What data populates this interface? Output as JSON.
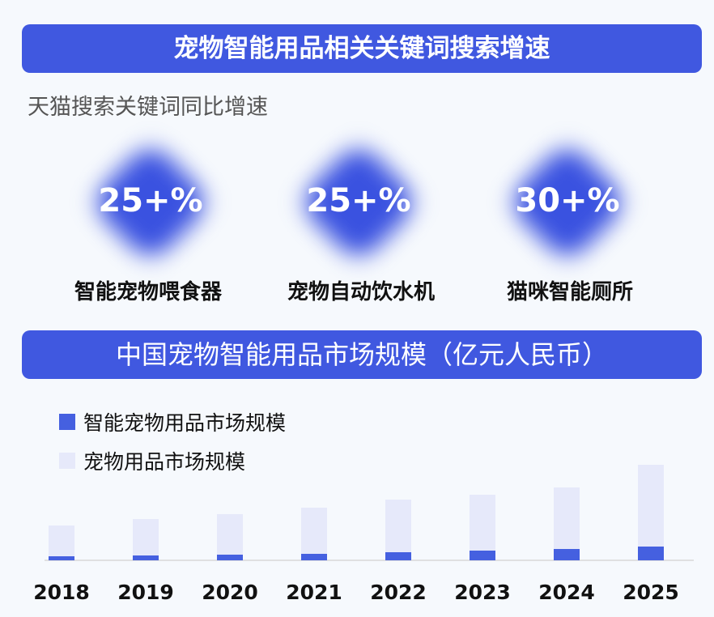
{
  "title": "宠物智能用品相关关键词搜索增速",
  "subtitle": "天猫搜索关键词同比增速",
  "stats": [
    {
      "value": "25+%",
      "label": "智能宠物喂食器"
    },
    {
      "value": "25+%",
      "label": "宠物自动饮水机"
    },
    {
      "value": "30+%",
      "label": "猫咪智能厕所"
    }
  ],
  "colors": {
    "accent": "#4058e0",
    "smart": "#4560e0",
    "total": "#e6e9fa"
  },
  "chart_data": {
    "type": "bar",
    "title": "中国宠物智能用品市场规模（亿元人民币）",
    "categories": [
      "2018",
      "2019",
      "2020",
      "2021",
      "2022",
      "2023",
      "2024",
      "2025"
    ],
    "series": [
      {
        "name": "智能宠物用品市场规模",
        "values": [
          5,
          6,
          7,
          8,
          10,
          12,
          14,
          17
        ]
      },
      {
        "name": "宠物用品市场规模",
        "values": [
          43,
          51,
          57,
          65,
          75,
          81,
          90,
          118
        ]
      }
    ],
    "ylim": [
      0,
      120
    ],
    "grid": false,
    "legend": "top-left"
  }
}
